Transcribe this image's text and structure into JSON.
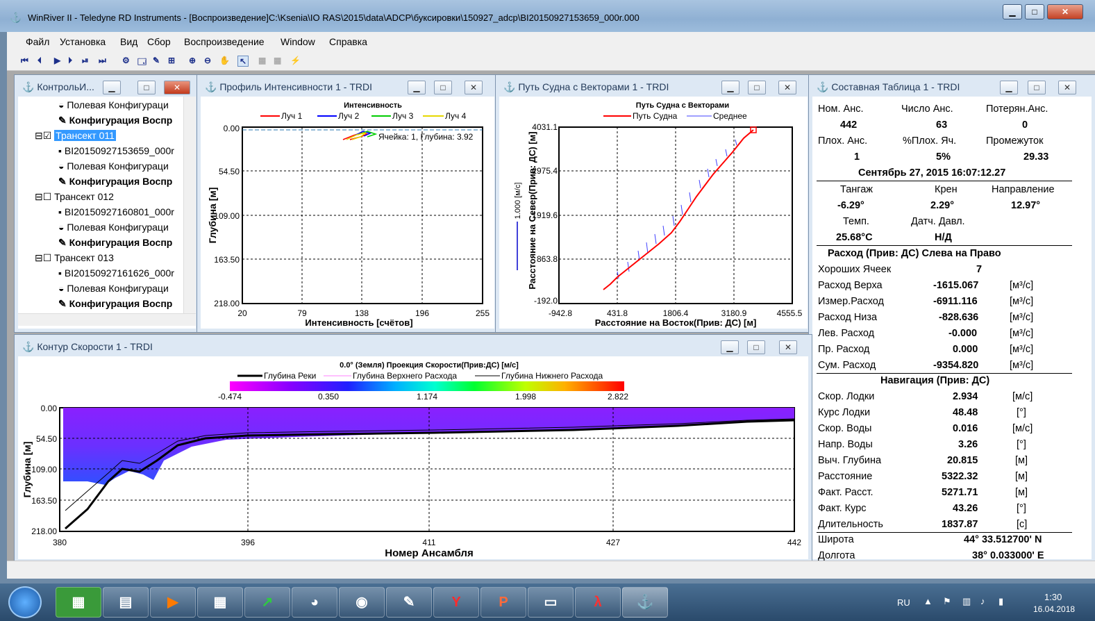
{
  "app": {
    "title": "WinRiver II - Teledyne RD Instruments - [Воспроизведение]C:\\Ksenia\\IO RAS\\2015\\data\\ADCP\\буксировки\\150927_adcp\\BI20150927153659_000r.000"
  },
  "menu": [
    "Файл",
    "Установка",
    "Вид",
    "Сбор",
    "Воспроизведение",
    "Window",
    "Справка"
  ],
  "colors": {
    "beam1": "#ff0000",
    "beam2": "#0000ff",
    "beam3": "#00cc00",
    "beam4": "#e6d800",
    "ship": "#ff0000",
    "avg": "#4040ff"
  },
  "control": {
    "title": "КонтрольИ...",
    "items": [
      "Полевая Конфигураци",
      "Конфигурация Воспр",
      "Трансект 011",
      "BI20150927153659_000r",
      "Полевая Конфигураци",
      "Конфигурация Воспр",
      "Трансект 012",
      "BI20150927160801_000r",
      "Полевая Конфигураци",
      "Конфигурация Воспр",
      "Трансект 013",
      "BI20150927161626_000r",
      "Полевая Конфигураци",
      "Конфигурация Воспр"
    ]
  },
  "intensity": {
    "window_title": "Профиль Интенсивности 1 - TRDI",
    "title": "Интенсивность",
    "legend": [
      "Луч 1",
      "Луч 2",
      "Луч 3",
      "Луч 4"
    ],
    "cell_label": "Ячейка: 1, Глубина: 3.92",
    "yticks": [
      "0.00",
      "54.50",
      "109.00",
      "163.50",
      "218.00"
    ],
    "xticks": [
      "20",
      "79",
      "138",
      "196",
      "255"
    ],
    "ylabel": "Глубина [м]",
    "xlabel": "Интенсивность [счётов]"
  },
  "track": {
    "window_title": "Путь Судна с Векторами 1 - TRDI",
    "title": "Путь Судна с Векторами",
    "legend": [
      "Путь Судна",
      "Среднее"
    ],
    "yticks": [
      "4031.1",
      "2975.4",
      "1919.6",
      "863.8",
      "-192.0"
    ],
    "xticks": [
      "-942.8",
      "431.8",
      "1806.4",
      "3180.9",
      "4555.5"
    ],
    "ylabel": "Расстояние на Север(Прив: ДС) [м]",
    "xlabel": "Расстояние на Восток(Прив: ДС) [м]",
    "scale": "1.000 [м/с]"
  },
  "table": {
    "window_title": "Составная Таблица 1 - TRDI",
    "h1": [
      "Ном. Анс.",
      "Число Анс.",
      "Потерян.Анс."
    ],
    "v1": [
      "442",
      "63",
      "0"
    ],
    "h2": [
      "Плох. Анс.",
      "%Плох. Яч.",
      "Промежуток"
    ],
    "v2": [
      "1",
      "5%",
      "29.33"
    ],
    "datetime": "Сентябрь 27, 2015  16:07:12.27",
    "h3": [
      "Тангаж",
      "Крен",
      "Направление"
    ],
    "v3": [
      "-6.29°",
      "2.29°",
      "12.97°"
    ],
    "h4": [
      "Темп.",
      "Датч. Давл."
    ],
    "v4": [
      "25.68°C",
      "Н/Д"
    ],
    "discharge_title": "Расход (Прив: ДС) Слева на Право",
    "good_cells_label": "Хороших Ячеек",
    "good_cells": "7",
    "discharge": [
      [
        "Расход Верха",
        "-1615.067",
        "[м³/с]"
      ],
      [
        "Измер.Расход",
        "-6911.116",
        "[м³/с]"
      ],
      [
        "Расход Низа",
        "-828.636",
        "[м³/с]"
      ],
      [
        "Лев. Расход",
        "-0.000",
        "[м³/с]"
      ],
      [
        "Пр. Расход",
        "0.000",
        "[м³/с]"
      ],
      [
        "Сум. Расход",
        "-9354.820",
        "[м³/с]"
      ]
    ],
    "nav_title": "Навигация (Прив: ДС)",
    "nav": [
      [
        "Скор. Лодки",
        "2.934",
        "[м/с]"
      ],
      [
        "Курс Лодки",
        "48.48",
        "[°]"
      ],
      [
        "Скор. Воды",
        "0.016",
        "[м/с]"
      ],
      [
        "Напр. Воды",
        "3.26",
        "[°]"
      ],
      [
        "Выч. Глубина",
        "20.815",
        "[м]"
      ],
      [
        "Расстояние",
        "5322.32",
        "[м]"
      ],
      [
        "Факт. Расст.",
        "5271.71",
        "[м]"
      ],
      [
        "Факт. Курс",
        "43.26",
        "[°]"
      ],
      [
        "Длительность",
        "1837.87",
        "[с]"
      ]
    ],
    "lat_label": "Широта",
    "lat": "44° 33.512700' N",
    "lon_label": "Долгота",
    "lon": "38° 0.033000' E"
  },
  "contour": {
    "window_title": "Контур Скорости 1 - TRDI",
    "title": "0.0° (Земля) Проекция Скорости(Прив:ДС) [м/с]",
    "legend": [
      "Глубина Реки",
      "Глубина Верхнего Расхода",
      "Глубина Нижнего Расхода"
    ],
    "colorbar": [
      "-0.474",
      "0.350",
      "1.174",
      "1.998",
      "2.822"
    ],
    "yticks": [
      "0.00",
      "54.50",
      "109.00",
      "163.50",
      "218.00"
    ],
    "xticks": [
      "380",
      "396",
      "411",
      "427",
      "442"
    ],
    "ylabel": "Глубина [м]",
    "xlabel": "Номер Ансамбля"
  },
  "taskbar": {
    "lang": "RU",
    "time": "1:30",
    "date": "16.04.2018"
  }
}
